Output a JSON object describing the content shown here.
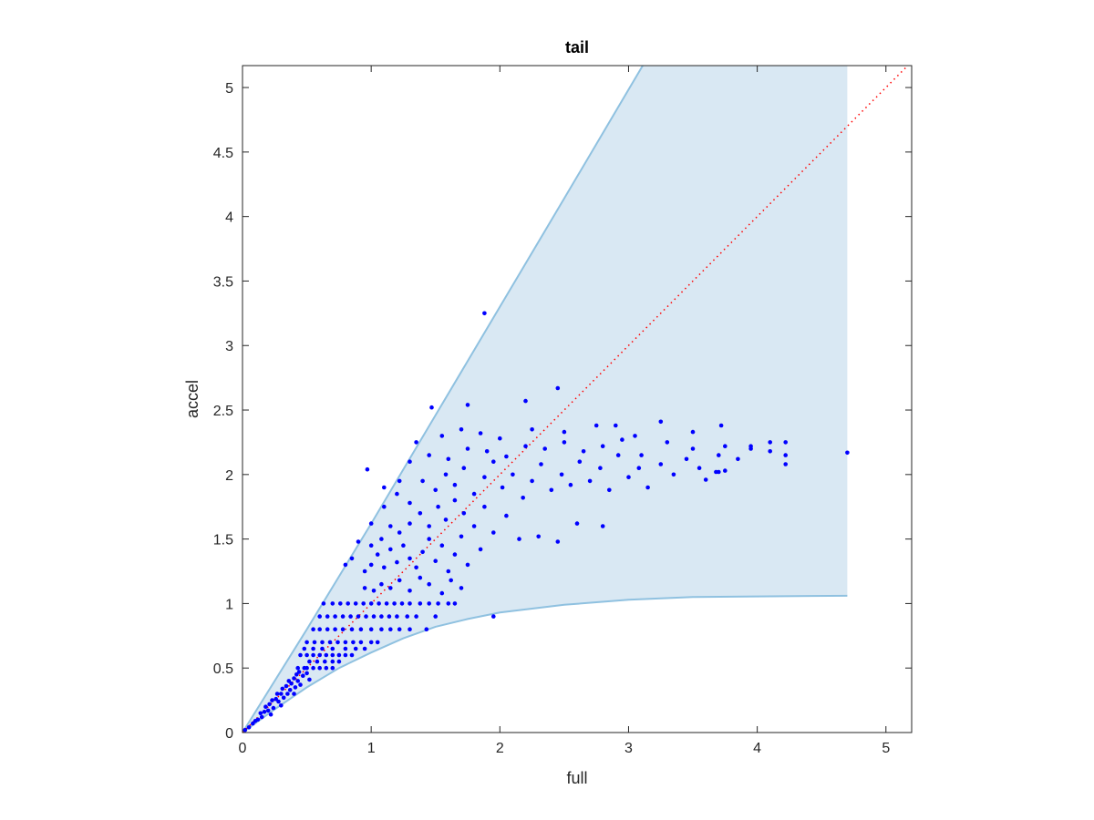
{
  "chart_data": {
    "type": "scatter",
    "title": "tail",
    "xlabel": "full",
    "ylabel": "accel",
    "xlim": [
      0,
      5.2
    ],
    "ylim": [
      0,
      5.17
    ],
    "xticks": [
      "0",
      "1",
      "2",
      "3",
      "4",
      "5"
    ],
    "yticks": [
      "0",
      "0.5",
      "1",
      "1.5",
      "2",
      "2.5",
      "3",
      "3.5",
      "4",
      "4.5",
      "5"
    ],
    "grid": false,
    "colors": {
      "points": "#0000ff",
      "band_fill": "#d9e8f3",
      "band_edge": "#8fc1e0",
      "reference_line": "#ff0000"
    },
    "reference_line": {
      "style": "dotted",
      "points": [
        [
          0,
          0
        ],
        [
          5.2,
          5.2
        ]
      ]
    },
    "band": {
      "upper": [
        [
          0,
          0
        ],
        [
          0.5,
          0.8
        ],
        [
          1,
          1.62
        ],
        [
          1.5,
          2.46
        ],
        [
          2,
          3.3
        ],
        [
          2.5,
          4.14
        ],
        [
          3.11,
          5.17
        ],
        [
          4.7,
          5.17
        ]
      ],
      "lower": [
        [
          0,
          0
        ],
        [
          0.25,
          0.18
        ],
        [
          0.5,
          0.35
        ],
        [
          0.75,
          0.5
        ],
        [
          1,
          0.62
        ],
        [
          1.25,
          0.73
        ],
        [
          1.5,
          0.82
        ],
        [
          1.75,
          0.88
        ],
        [
          2,
          0.93
        ],
        [
          2.5,
          0.99
        ],
        [
          3,
          1.03
        ],
        [
          3.5,
          1.05
        ],
        [
          4,
          1.055
        ],
        [
          4.7,
          1.06
        ]
      ]
    },
    "points": [
      [
        0.02,
        0.02
      ],
      [
        0.05,
        0.04
      ],
      [
        0.08,
        0.07
      ],
      [
        0.1,
        0.09
      ],
      [
        0.12,
        0.1
      ],
      [
        0.14,
        0.15
      ],
      [
        0.15,
        0.12
      ],
      [
        0.17,
        0.16
      ],
      [
        0.18,
        0.2
      ],
      [
        0.2,
        0.17
      ],
      [
        0.21,
        0.22
      ],
      [
        0.23,
        0.25
      ],
      [
        0.24,
        0.19
      ],
      [
        0.26,
        0.26
      ],
      [
        0.27,
        0.3
      ],
      [
        0.28,
        0.24
      ],
      [
        0.3,
        0.3
      ],
      [
        0.31,
        0.34
      ],
      [
        0.32,
        0.27
      ],
      [
        0.34,
        0.36
      ],
      [
        0.35,
        0.3
      ],
      [
        0.36,
        0.4
      ],
      [
        0.37,
        0.33
      ],
      [
        0.38,
        0.38
      ],
      [
        0.4,
        0.42
      ],
      [
        0.41,
        0.35
      ],
      [
        0.42,
        0.45
      ],
      [
        0.43,
        0.4
      ],
      [
        0.44,
        0.47
      ],
      [
        0.45,
        0.37
      ],
      [
        0.47,
        0.44
      ],
      [
        0.48,
        0.5
      ],
      [
        0.5,
        0.46
      ],
      [
        0.52,
        0.41
      ],
      [
        0.3,
        0.21
      ],
      [
        0.4,
        0.3
      ],
      [
        0.22,
        0.14
      ],
      [
        0.43,
        0.5
      ],
      [
        0.5,
        0.5
      ],
      [
        0.55,
        0.5
      ],
      [
        0.6,
        0.5
      ],
      [
        0.65,
        0.5
      ],
      [
        0.7,
        0.5
      ],
      [
        0.52,
        0.55
      ],
      [
        0.58,
        0.55
      ],
      [
        0.64,
        0.55
      ],
      [
        0.7,
        0.55
      ],
      [
        0.75,
        0.55
      ],
      [
        0.45,
        0.6
      ],
      [
        0.5,
        0.6
      ],
      [
        0.55,
        0.6
      ],
      [
        0.6,
        0.6
      ],
      [
        0.65,
        0.6
      ],
      [
        0.7,
        0.6
      ],
      [
        0.75,
        0.6
      ],
      [
        0.8,
        0.6
      ],
      [
        0.85,
        0.6
      ],
      [
        0.48,
        0.65
      ],
      [
        0.55,
        0.65
      ],
      [
        0.62,
        0.65
      ],
      [
        0.7,
        0.65
      ],
      [
        0.8,
        0.65
      ],
      [
        0.88,
        0.65
      ],
      [
        0.95,
        0.65
      ],
      [
        0.5,
        0.7
      ],
      [
        0.56,
        0.7
      ],
      [
        0.62,
        0.7
      ],
      [
        0.68,
        0.7
      ],
      [
        0.74,
        0.7
      ],
      [
        0.8,
        0.7
      ],
      [
        0.86,
        0.7
      ],
      [
        0.92,
        0.7
      ],
      [
        1.0,
        0.7
      ],
      [
        1.05,
        0.7
      ],
      [
        0.55,
        0.8
      ],
      [
        0.6,
        0.8
      ],
      [
        0.66,
        0.8
      ],
      [
        0.72,
        0.8
      ],
      [
        0.78,
        0.8
      ],
      [
        0.85,
        0.8
      ],
      [
        0.92,
        0.8
      ],
      [
        1.0,
        0.8
      ],
      [
        1.08,
        0.8
      ],
      [
        1.15,
        0.8
      ],
      [
        1.22,
        0.8
      ],
      [
        1.3,
        0.8
      ],
      [
        1.43,
        0.8
      ],
      [
        0.6,
        0.9
      ],
      [
        0.66,
        0.9
      ],
      [
        0.72,
        0.9
      ],
      [
        0.78,
        0.9
      ],
      [
        0.84,
        0.9
      ],
      [
        0.9,
        0.9
      ],
      [
        0.96,
        0.9
      ],
      [
        1.02,
        0.9
      ],
      [
        1.08,
        0.9
      ],
      [
        1.14,
        0.9
      ],
      [
        1.2,
        0.9
      ],
      [
        1.28,
        0.9
      ],
      [
        1.35,
        0.9
      ],
      [
        1.5,
        0.9
      ],
      [
        1.95,
        0.9
      ],
      [
        0.63,
        1.0
      ],
      [
        0.7,
        1.0
      ],
      [
        0.76,
        1.0
      ],
      [
        0.82,
        1.0
      ],
      [
        0.88,
        1.0
      ],
      [
        0.94,
        1.0
      ],
      [
        1.0,
        1.0
      ],
      [
        1.06,
        1.0
      ],
      [
        1.12,
        1.0
      ],
      [
        1.18,
        1.0
      ],
      [
        1.24,
        1.0
      ],
      [
        1.3,
        1.0
      ],
      [
        1.38,
        1.0
      ],
      [
        1.45,
        1.0
      ],
      [
        1.52,
        1.0
      ],
      [
        1.6,
        1.0
      ],
      [
        1.65,
        1.0
      ],
      [
        0.95,
        1.12
      ],
      [
        1.02,
        1.1
      ],
      [
        1.08,
        1.15
      ],
      [
        1.15,
        1.12
      ],
      [
        1.22,
        1.18
      ],
      [
        1.3,
        1.1
      ],
      [
        1.38,
        1.2
      ],
      [
        1.45,
        1.15
      ],
      [
        1.55,
        1.08
      ],
      [
        1.62,
        1.18
      ],
      [
        1.7,
        1.12
      ],
      [
        0.95,
        1.25
      ],
      [
        1.0,
        1.3
      ],
      [
        1.05,
        1.38
      ],
      [
        1.1,
        1.28
      ],
      [
        1.15,
        1.42
      ],
      [
        1.2,
        1.32
      ],
      [
        1.25,
        1.45
      ],
      [
        1.3,
        1.35
      ],
      [
        1.35,
        1.28
      ],
      [
        1.4,
        1.4
      ],
      [
        1.45,
        1.5
      ],
      [
        1.5,
        1.33
      ],
      [
        1.55,
        1.45
      ],
      [
        1.6,
        1.25
      ],
      [
        1.65,
        1.38
      ],
      [
        1.7,
        1.52
      ],
      [
        1.75,
        1.3
      ],
      [
        1.85,
        1.42
      ],
      [
        1.0,
        1.45
      ],
      [
        1.08,
        1.5
      ],
      [
        1.15,
        1.6
      ],
      [
        1.22,
        1.55
      ],
      [
        1.3,
        1.62
      ],
      [
        1.38,
        1.7
      ],
      [
        1.45,
        1.6
      ],
      [
        1.52,
        1.75
      ],
      [
        1.58,
        1.65
      ],
      [
        1.65,
        1.8
      ],
      [
        1.72,
        1.7
      ],
      [
        1.8,
        1.6
      ],
      [
        1.88,
        1.75
      ],
      [
        1.95,
        1.55
      ],
      [
        2.05,
        1.68
      ],
      [
        2.15,
        1.5
      ],
      [
        2.3,
        1.52
      ],
      [
        2.45,
        1.48
      ],
      [
        2.6,
        1.62
      ],
      [
        2.8,
        1.6
      ],
      [
        1.1,
        1.75
      ],
      [
        1.2,
        1.85
      ],
      [
        1.3,
        1.78
      ],
      [
        1.4,
        1.95
      ],
      [
        1.5,
        1.88
      ],
      [
        1.58,
        2.0
      ],
      [
        1.65,
        1.92
      ],
      [
        1.72,
        2.05
      ],
      [
        1.8,
        1.85
      ],
      [
        1.88,
        1.98
      ],
      [
        1.95,
        2.1
      ],
      [
        2.02,
        1.9
      ],
      [
        2.1,
        2.0
      ],
      [
        2.18,
        1.82
      ],
      [
        2.25,
        1.95
      ],
      [
        2.32,
        2.08
      ],
      [
        2.4,
        1.88
      ],
      [
        2.48,
        2.0
      ],
      [
        2.55,
        1.92
      ],
      [
        2.62,
        2.1
      ],
      [
        2.7,
        1.95
      ],
      [
        2.78,
        2.05
      ],
      [
        2.85,
        1.88
      ],
      [
        2.92,
        2.15
      ],
      [
        3.0,
        1.98
      ],
      [
        3.08,
        2.05
      ],
      [
        3.15,
        1.9
      ],
      [
        3.25,
        2.08
      ],
      [
        3.35,
        2.0
      ],
      [
        3.45,
        2.12
      ],
      [
        3.55,
        2.05
      ],
      [
        3.6,
        1.96
      ],
      [
        3.7,
        2.02
      ],
      [
        1.3,
        2.1
      ],
      [
        1.45,
        2.15
      ],
      [
        1.6,
        2.12
      ],
      [
        1.75,
        2.2
      ],
      [
        1.9,
        2.18
      ],
      [
        2.05,
        2.14
      ],
      [
        2.2,
        2.22
      ],
      [
        2.35,
        2.2
      ],
      [
        2.5,
        2.25
      ],
      [
        2.65,
        2.18
      ],
      [
        2.8,
        2.22
      ],
      [
        2.95,
        2.27
      ],
      [
        3.1,
        2.15
      ],
      [
        3.3,
        2.25
      ],
      [
        3.5,
        2.2
      ],
      [
        3.7,
        2.15
      ],
      [
        3.85,
        2.12
      ],
      [
        3.95,
        2.2
      ],
      [
        4.1,
        2.18
      ],
      [
        4.22,
        2.15
      ],
      [
        1.55,
        2.3
      ],
      [
        1.7,
        2.35
      ],
      [
        1.85,
        2.32
      ],
      [
        2.0,
        2.28
      ],
      [
        2.25,
        2.35
      ],
      [
        2.5,
        2.33
      ],
      [
        2.75,
        2.38
      ],
      [
        2.9,
        2.38
      ],
      [
        3.05,
        2.3
      ],
      [
        3.25,
        2.41
      ],
      [
        3.5,
        2.33
      ],
      [
        3.72,
        2.38
      ],
      [
        3.75,
        2.22
      ],
      [
        4.1,
        2.25
      ],
      [
        4.22,
        2.25
      ],
      [
        3.95,
        2.22
      ],
      [
        4.22,
        2.08
      ],
      [
        3.75,
        2.03
      ],
      [
        3.68,
        2.02
      ],
      [
        0.97,
        2.04
      ],
      [
        1.1,
        1.9
      ],
      [
        1.22,
        1.95
      ],
      [
        1.35,
        2.25
      ],
      [
        1.47,
        2.52
      ],
      [
        1.75,
        2.54
      ],
      [
        1.88,
        3.25
      ],
      [
        2.2,
        2.57
      ],
      [
        2.45,
        2.67
      ],
      [
        4.7,
        2.17
      ],
      [
        0.8,
        1.3
      ],
      [
        0.85,
        1.35
      ],
      [
        0.9,
        1.48
      ],
      [
        1.0,
        1.62
      ]
    ]
  }
}
